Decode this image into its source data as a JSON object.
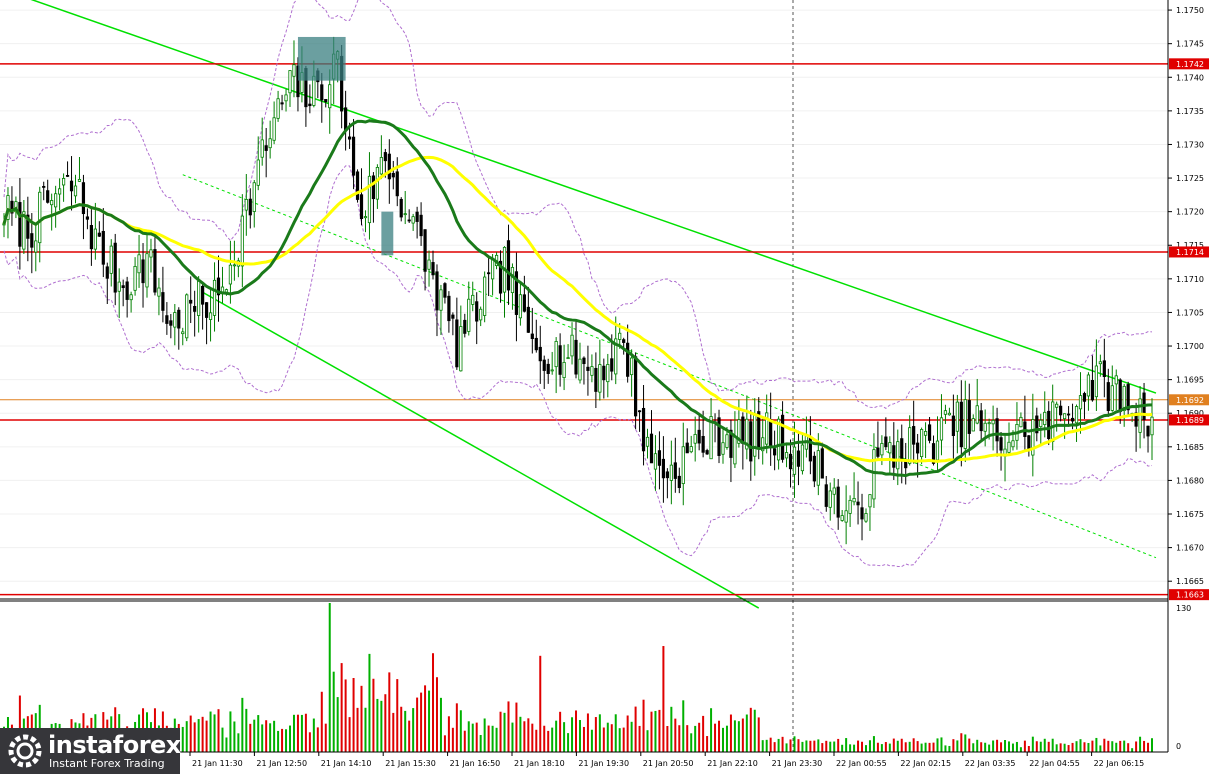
{
  "logo": {
    "brand": "instaforex",
    "tagline": "Instant Forex Trading",
    "icon": "instaforex-logo-icon"
  },
  "colors": {
    "bull": "#008000",
    "bear": "#000000",
    "ma_fast": "#1a7a1a",
    "ma_slow": "#ffff00",
    "envelope": "#b070d0",
    "channel": "#00e000",
    "level": "#e00000",
    "current": "#e08020",
    "marker": "#3a7f80",
    "vol_up": "#00b000",
    "vol_down": "#e00000"
  },
  "chart_data": [
    {
      "type": "candlestick",
      "title": "",
      "ylim": [
        1.16625,
        1.17515
      ],
      "y_ticks": [
        "1.1750",
        "1.1745",
        "1.1740",
        "1.1735",
        "1.1730",
        "1.1725",
        "1.1720",
        "1.1715",
        "1.1710",
        "1.1705",
        "1.1700",
        "1.1695",
        "1.1690",
        "1.1685",
        "1.1680",
        "1.1675",
        "1.1670",
        "1.1665"
      ],
      "x_ticks": [
        "21 Jan 11:30",
        "21 Jan 12:50",
        "21 Jan 14:10",
        "21 Jan 15:30",
        "21 Jan 16:50",
        "21 Jan 18:10",
        "21 Jan 19:30",
        "21 Jan 20:50",
        "21 Jan 22:10",
        "21 Jan 23:30",
        "22 Jan 00:55",
        "22 Jan 02:15",
        "22 Jan 03:35",
        "22 Jan 04:55",
        "22 Jan 06:15"
      ],
      "anchors": [
        [
          0,
          1.172
        ],
        [
          6,
          1.1717
        ],
        [
          12,
          1.1722
        ],
        [
          18,
          1.1724
        ],
        [
          24,
          1.1714
        ],
        [
          30,
          1.1709
        ],
        [
          36,
          1.1713
        ],
        [
          42,
          1.1703
        ],
        [
          48,
          1.1706
        ],
        [
          54,
          1.1707
        ],
        [
          60,
          1.1718
        ],
        [
          66,
          1.173
        ],
        [
          72,
          1.1739
        ],
        [
          78,
          1.1737
        ],
        [
          84,
          1.1742
        ],
        [
          86,
          1.1732
        ],
        [
          90,
          1.172
        ],
        [
          96,
          1.1728
        ],
        [
          102,
          1.1719
        ],
        [
          108,
          1.171
        ],
        [
          114,
          1.17
        ],
        [
          120,
          1.1707
        ],
        [
          126,
          1.1712
        ],
        [
          132,
          1.1701
        ],
        [
          138,
          1.1699
        ],
        [
          144,
          1.1698
        ],
        [
          150,
          1.1696
        ],
        [
          156,
          1.1701
        ],
        [
          162,
          1.1684
        ],
        [
          168,
          1.1681
        ],
        [
          174,
          1.1685
        ],
        [
          180,
          1.1687
        ],
        [
          186,
          1.1686
        ],
        [
          192,
          1.1687
        ],
        [
          198,
          1.1685
        ],
        [
          204,
          1.1683
        ],
        [
          210,
          1.1676
        ],
        [
          214,
          1.1674
        ],
        [
          220,
          1.1683
        ],
        [
          226,
          1.1685
        ],
        [
          232,
          1.1685
        ],
        [
          238,
          1.1688
        ],
        [
          244,
          1.1689
        ],
        [
          250,
          1.1686
        ],
        [
          256,
          1.1687
        ],
        [
          262,
          1.1688
        ],
        [
          268,
          1.1691
        ],
        [
          274,
          1.1695
        ],
        [
          280,
          1.1693
        ],
        [
          286,
          1.169
        ]
      ],
      "moving_averages": [
        {
          "color": "green",
          "period": 30
        },
        {
          "color": "yellow",
          "period": 50
        }
      ],
      "horizontal_levels": [
        1.1742,
        1.1714,
        1.1689,
        1.1663
      ],
      "price_tags": [
        "1.1742",
        "1.1714",
        "1.1692",
        "1.1689",
        "1.1663"
      ],
      "current_price": "1.1692",
      "channel": {
        "upper": [
          [
            0,
            1.1753
          ],
          [
            290,
            1.1693
          ]
        ],
        "lower": [
          [
            50,
            1.1708
          ],
          [
            190,
            1.1661
          ]
        ]
      },
      "marker_boxes": [
        {
          "index_from": 74,
          "index_to": 86,
          "high": 1.1746,
          "low": 1.17395
        },
        {
          "index_from": 95,
          "index_to": 98,
          "high": 1.172,
          "low": 1.17135
        }
      ]
    },
    {
      "type": "bar",
      "title": "volume",
      "y_ticks": [
        "130",
        "0"
      ],
      "ylim": [
        0,
        130
      ]
    }
  ]
}
